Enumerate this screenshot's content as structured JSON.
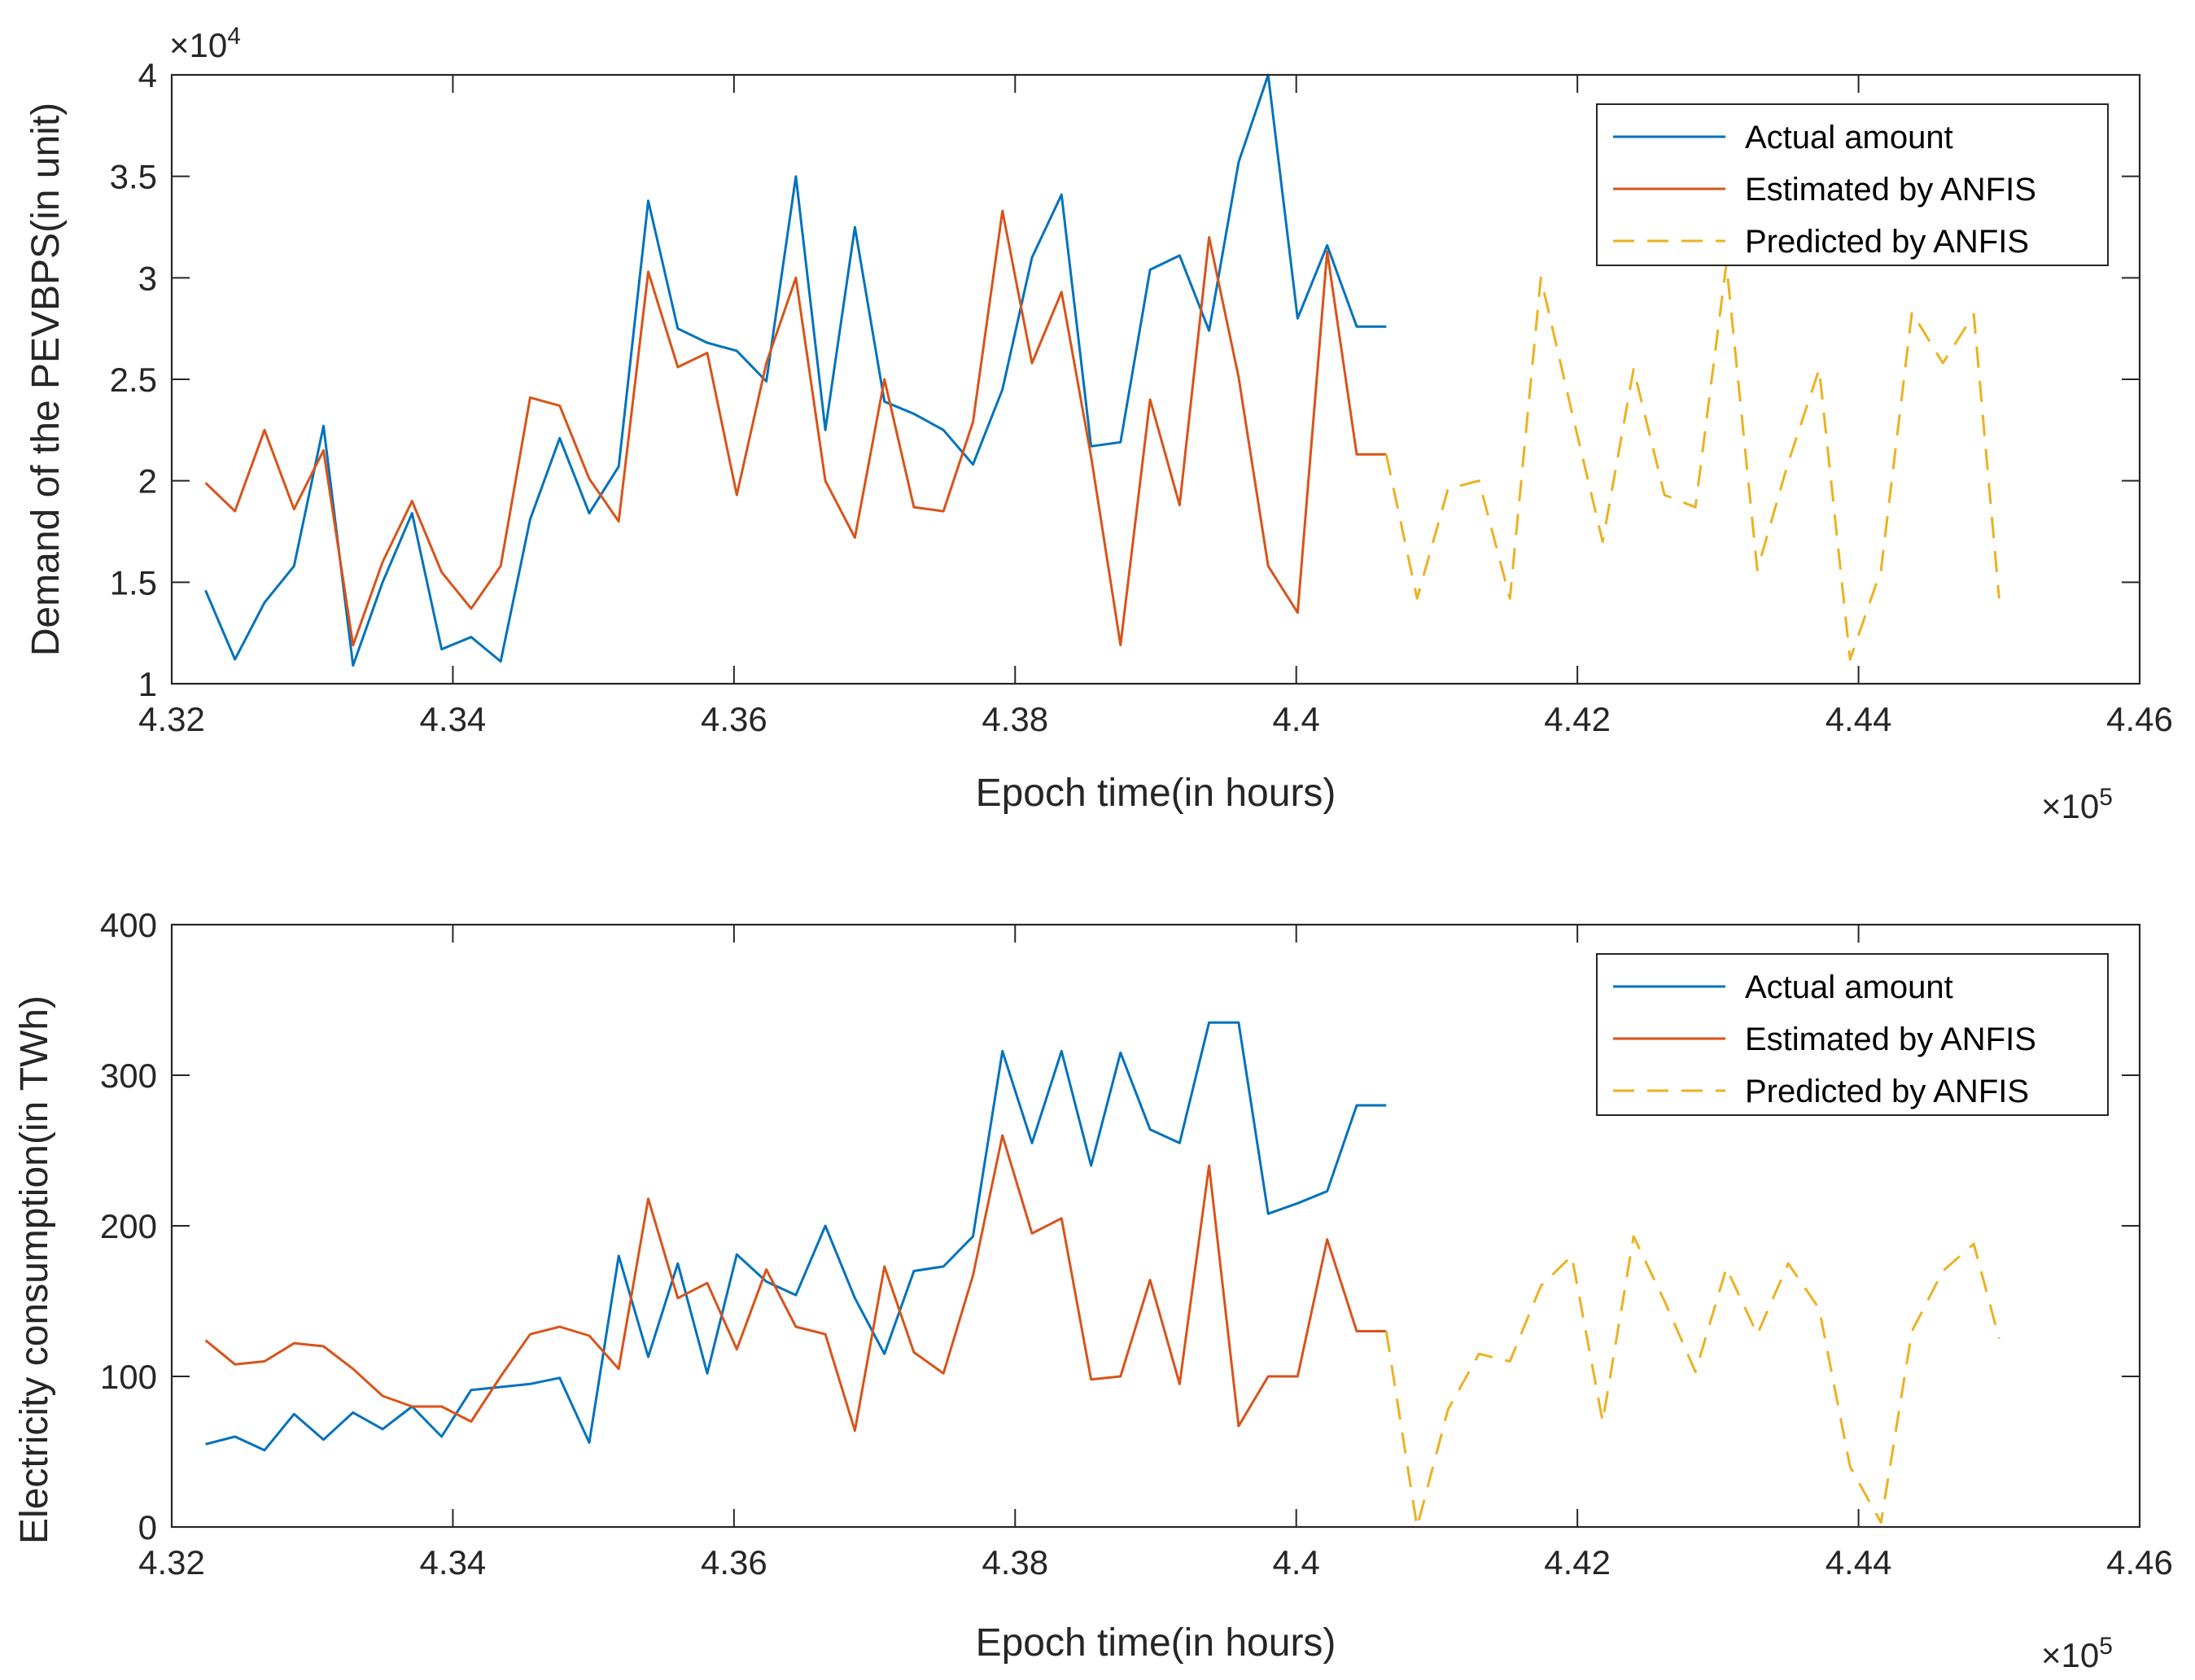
{
  "colors": {
    "actual": "#0072BD",
    "estimated": "#D95319",
    "predicted": "#EDB120"
  },
  "chart_data": [
    {
      "type": "line",
      "title": "",
      "xlabel": "Epoch time(in hours)",
      "ylabel": "Demand of the PEVBPS(in unit)",
      "xlim": [
        432000,
        446000
      ],
      "ylim": [
        10000,
        40000
      ],
      "x_ticks": [
        432000,
        434000,
        436000,
        438000,
        440000,
        442000,
        444000,
        446000
      ],
      "x_tick_labels": [
        "4.32",
        "4.34",
        "4.36",
        "4.38",
        "4.4",
        "4.42",
        "4.44",
        "4.46"
      ],
      "x_exponent_label": "×10",
      "x_exponent_power": "5",
      "y_ticks": [
        10000,
        15000,
        20000,
        25000,
        30000,
        35000,
        40000
      ],
      "y_tick_labels": [
        "1",
        "1.5",
        "2",
        "2.5",
        "3",
        "3.5",
        "4"
      ],
      "y_exponent_label": "×10",
      "y_exponent_power": "4",
      "grid": false,
      "legend_position": "top-right",
      "series": [
        {
          "name": "Actual amount",
          "style": "solid",
          "color_key": "actual",
          "x": [
            432240,
            432450,
            432660,
            432870,
            433080,
            433290,
            433500,
            433710,
            433920,
            434130,
            434340,
            434550,
            434760,
            434970,
            435180,
            435390,
            435600,
            435810,
            436020,
            436230,
            436440,
            436650,
            436860,
            437070,
            437280,
            437490,
            437700,
            437910,
            438120,
            438330,
            438540,
            438750,
            438960,
            439170,
            439380,
            439590,
            439800,
            440010,
            440220,
            440430,
            440640
          ],
          "y": [
            14600,
            11200,
            14000,
            15800,
            22700,
            10900,
            15000,
            18400,
            11700,
            12300,
            11100,
            18100,
            22100,
            18400,
            20700,
            33800,
            27500,
            26800,
            26400,
            24900,
            35000,
            22500,
            32500,
            23900,
            23300,
            22500,
            20800,
            24500,
            31000,
            34100,
            21700,
            21900,
            30400,
            31100,
            27400,
            35700,
            40000,
            28000,
            31600,
            27600,
            27600
          ]
        },
        {
          "name": "Estimated by ANFIS",
          "style": "solid",
          "color_key": "estimated",
          "x": [
            432240,
            432450,
            432660,
            432870,
            433080,
            433290,
            433500,
            433710,
            433920,
            434130,
            434340,
            434550,
            434760,
            434970,
            435180,
            435390,
            435600,
            435810,
            436020,
            436230,
            436440,
            436650,
            436860,
            437070,
            437280,
            437490,
            437700,
            437910,
            438120,
            438330,
            438540,
            438750,
            438960,
            439170,
            439380,
            439590,
            439800,
            440010,
            440220,
            440430,
            440640
          ],
          "y": [
            19900,
            18500,
            22500,
            18600,
            21500,
            11900,
            16000,
            19000,
            15500,
            13700,
            15800,
            24100,
            23700,
            20100,
            18000,
            30300,
            25600,
            26300,
            19300,
            25800,
            30000,
            20000,
            17200,
            25000,
            18700,
            18500,
            22900,
            33300,
            25800,
            29300,
            21200,
            11900,
            24000,
            18800,
            32000,
            25100,
            15800,
            13500,
            31300,
            21300,
            21300
          ]
        },
        {
          "name": "Predicted by ANFIS",
          "style": "dashed",
          "color_key": "predicted",
          "x": [
            440640,
            440860,
            441080,
            441300,
            441520,
            441740,
            441960,
            442180,
            442400,
            442620,
            442840,
            443060,
            443280,
            443500,
            443720,
            443940,
            444160,
            444380,
            444600,
            444820,
            445000
          ],
          "y": [
            21300,
            14200,
            19600,
            20000,
            14200,
            30000,
            23400,
            17000,
            25500,
            19300,
            18700,
            30700,
            15600,
            20900,
            25500,
            11200,
            15600,
            28300,
            25800,
            28200,
            14200
          ]
        }
      ]
    },
    {
      "type": "line",
      "title": "",
      "xlabel": "Epoch time(in hours)",
      "ylabel": "Electricity consumption(in TWh)",
      "xlim": [
        432000,
        446000
      ],
      "ylim": [
        0,
        400
      ],
      "x_ticks": [
        432000,
        434000,
        436000,
        438000,
        440000,
        442000,
        444000,
        446000
      ],
      "x_tick_labels": [
        "4.32",
        "4.34",
        "4.36",
        "4.38",
        "4.4",
        "4.42",
        "4.44",
        "4.46"
      ],
      "x_exponent_label": "×10",
      "x_exponent_power": "5",
      "y_ticks": [
        0,
        100,
        200,
        300,
        400
      ],
      "y_tick_labels": [
        "0",
        "100",
        "200",
        "300",
        "400"
      ],
      "grid": false,
      "legend_position": "top-right",
      "series": [
        {
          "name": "Actual amount",
          "style": "solid",
          "color_key": "actual",
          "x": [
            432240,
            432450,
            432660,
            432870,
            433080,
            433290,
            433500,
            433710,
            433920,
            434130,
            434340,
            434550,
            434760,
            434970,
            435180,
            435390,
            435600,
            435810,
            436020,
            436230,
            436440,
            436650,
            436860,
            437070,
            437280,
            437490,
            437700,
            437910,
            438120,
            438330,
            438540,
            438750,
            438960,
            439170,
            439380,
            439590,
            439800,
            440010,
            440220,
            440430,
            440640
          ],
          "y": [
            55,
            60,
            51,
            75,
            58,
            76,
            65,
            80,
            60,
            91,
            93,
            95,
            99,
            56,
            180,
            113,
            175,
            102,
            181,
            163,
            154,
            200,
            152,
            115,
            170,
            173,
            193,
            316,
            255,
            316,
            240,
            315,
            264,
            255,
            335,
            335,
            208,
            215,
            223,
            280,
            280
          ]
        },
        {
          "name": "Estimated by ANFIS",
          "style": "solid",
          "color_key": "estimated",
          "x": [
            432240,
            432450,
            432660,
            432870,
            433080,
            433290,
            433500,
            433710,
            433920,
            434130,
            434340,
            434550,
            434760,
            434970,
            435180,
            435390,
            435600,
            435810,
            436020,
            436230,
            436440,
            436650,
            436860,
            437070,
            437280,
            437490,
            437700,
            437910,
            438120,
            438330,
            438540,
            438750,
            438960,
            439170,
            439380,
            439590,
            439800,
            440010,
            440220,
            440430,
            440640
          ],
          "y": [
            124,
            108,
            110,
            122,
            120,
            105,
            87,
            80,
            80,
            70,
            100,
            128,
            133,
            127,
            105,
            218,
            152,
            162,
            118,
            171,
            133,
            128,
            64,
            173,
            116,
            102,
            167,
            260,
            195,
            205,
            98,
            100,
            164,
            95,
            240,
            67,
            100,
            100,
            191,
            130,
            130
          ]
        },
        {
          "name": "Predicted by ANFIS",
          "style": "dashed",
          "color_key": "predicted",
          "x": [
            440640,
            440860,
            441080,
            441300,
            441520,
            441740,
            441960,
            442180,
            442400,
            442620,
            442840,
            443060,
            443280,
            443500,
            443720,
            443940,
            444160,
            444380,
            444600,
            444820,
            445000
          ],
          "y": [
            130,
            0,
            78,
            115,
            110,
            160,
            180,
            70,
            193,
            150,
            103,
            172,
            128,
            175,
            145,
            40,
            3,
            130,
            170,
            188,
            125
          ]
        }
      ]
    }
  ]
}
